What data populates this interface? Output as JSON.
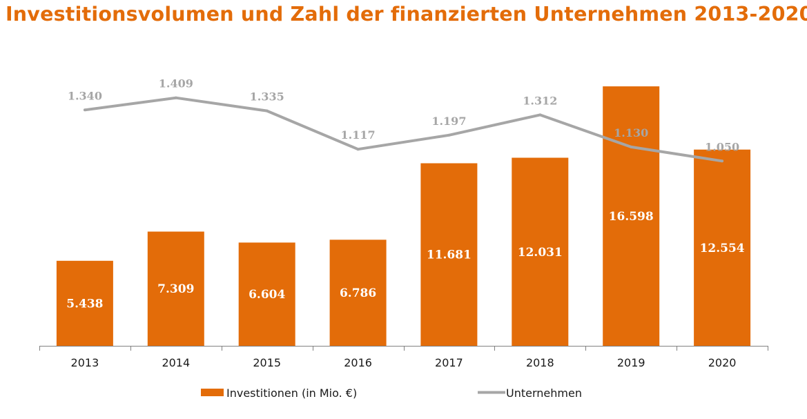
{
  "colors": {
    "title": "#e36c09",
    "bar": "#e36c09",
    "line": "#a6a6a6",
    "line_label": "#a6a6a6",
    "bar_label": "#ffffff",
    "axis": "#808080"
  },
  "chart_data": {
    "type": "bar",
    "title": "Investitionsvolumen und Zahl der finanzierten Unternehmen 2013-2020",
    "categories": [
      "2013",
      "2014",
      "2015",
      "2016",
      "2017",
      "2018",
      "2019",
      "2020"
    ],
    "series": [
      {
        "name": "Investitionen (in Mio. €)",
        "type": "bar",
        "values": [
          5438,
          7309,
          6604,
          6786,
          11681,
          12031,
          16598,
          12554
        ],
        "labels": [
          "5.438",
          "7.309",
          "6.604",
          "6.786",
          "11.681",
          "12.031",
          "16.598",
          "12.554"
        ]
      },
      {
        "name": "Unternehmen",
        "type": "line",
        "values": [
          1340,
          1409,
          1335,
          1117,
          1197,
          1312,
          1130,
          1050
        ],
        "labels": [
          "1.340",
          "1.409",
          "1.335",
          "1.117",
          "1.197",
          "1.312",
          "1.130",
          "1.050"
        ]
      }
    ],
    "ylim_bar": [
      0,
      17000
    ],
    "ylim_line": [
      0,
      1800
    ],
    "grid": false,
    "legend": "bottom-center"
  }
}
